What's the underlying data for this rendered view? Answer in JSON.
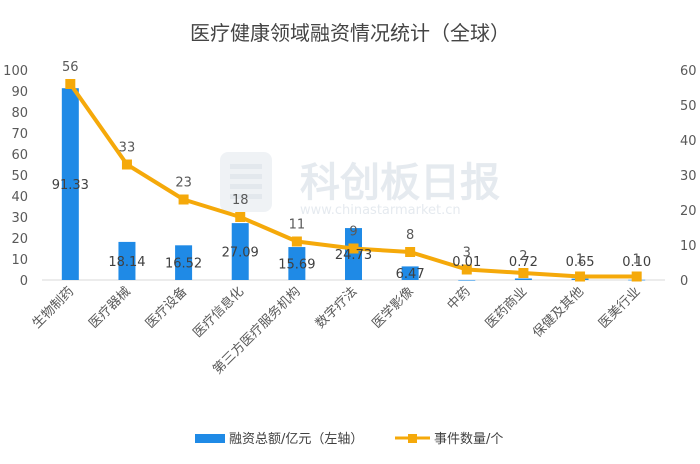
{
  "chart_data": {
    "type": "bar",
    "title": "医疗健康领域融资情况统计（全球）",
    "categories": [
      "生物制药",
      "医疗器械",
      "医疗设备",
      "医疗信息化",
      "第三方医疗服务机构",
      "数字疗法",
      "医学影像",
      "中药",
      "医药商业",
      "保健及其他",
      "医美行业"
    ],
    "series": [
      {
        "name": "融资总额/亿元（左轴）",
        "type": "bar",
        "axis": "left",
        "color": "#1f8ae6",
        "values": [
          91.33,
          18.14,
          16.52,
          27.09,
          15.69,
          24.73,
          6.47,
          0.01,
          0.72,
          0.65,
          0.1
        ],
        "labels": [
          "91.33",
          "18.14",
          "16.52",
          "27.09",
          "15.69",
          "24.73",
          "6.47",
          "0.01",
          "0.72",
          "0.65",
          "0.10"
        ]
      },
      {
        "name": "事件数量/个",
        "type": "line",
        "axis": "right",
        "color": "#f5a90a",
        "values": [
          56,
          33,
          23,
          18,
          11,
          9,
          8,
          3,
          2,
          1,
          1
        ],
        "labels": [
          "56",
          "33",
          "23",
          "18",
          "11",
          "9",
          "8",
          "3",
          "2",
          "1",
          "1"
        ]
      }
    ],
    "y_left": {
      "min": 0,
      "max": 100,
      "ticks": [
        "0",
        "10",
        "20",
        "30",
        "40",
        "50",
        "60",
        "70",
        "80",
        "90",
        "100"
      ]
    },
    "y_right": {
      "min": 0,
      "max": 60,
      "ticks": [
        "0",
        "10",
        "20",
        "30",
        "40",
        "50",
        "60"
      ]
    },
    "grid": false,
    "legend_position": "bottom"
  },
  "watermark": {
    "text": "科创板日报",
    "subtext": "www.chinastarmarket.cn",
    "icon": "newspaper-logo-icon"
  }
}
